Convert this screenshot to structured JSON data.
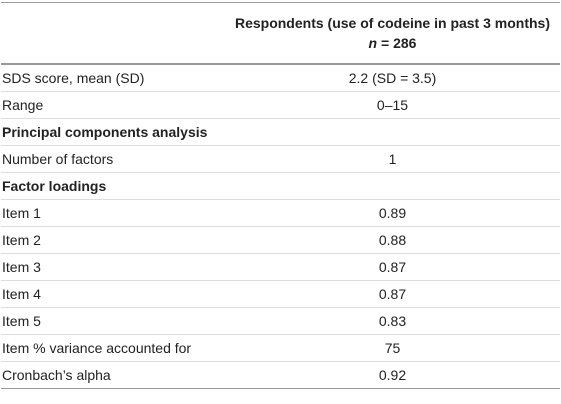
{
  "table": {
    "header": {
      "title": "Respondents (use of codeine in past 3 months)",
      "n_symbol": "n",
      "n_value": "= 286"
    },
    "rows": [
      {
        "label": "SDS score, mean (SD)",
        "value": "2.2 (SD = 3.5)"
      },
      {
        "label": "Range",
        "value": "0–15"
      },
      {
        "label": "Principal components analysis",
        "section": true
      },
      {
        "label": "Number of factors",
        "value": "1"
      },
      {
        "label": "Factor loadings",
        "section": true
      },
      {
        "label": "Item 1",
        "value": "0.89"
      },
      {
        "label": "Item 2",
        "value": "0.88"
      },
      {
        "label": "Item 3",
        "value": "0.87"
      },
      {
        "label": "Item 4",
        "value": "0.87"
      },
      {
        "label": "Item 5",
        "value": "0.83"
      },
      {
        "label": "Item % variance accounted for",
        "value": "75"
      },
      {
        "label": "Cronbach’s alpha",
        "value": "0.92"
      }
    ]
  }
}
